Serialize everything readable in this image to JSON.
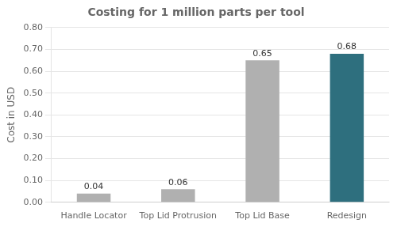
{
  "chart_data": {
    "type": "bar",
    "title": "Costing for 1 million parts per tool",
    "y_label": "Cost in USD",
    "categories": [
      "Handle Locator",
      "Top Lid Protrusion",
      "Top Lid Base",
      "Redesign"
    ],
    "values": [
      0.04,
      0.06,
      0.65,
      0.68
    ],
    "colors": [
      "#b0b0b0",
      "#b0b0b0",
      "#b0b0b0",
      "#2e6f7e"
    ],
    "ylim": [
      0.0,
      0.8
    ],
    "yticks": [
      {
        "value": 0.0,
        "label": "0.00"
      },
      {
        "value": 0.1,
        "label": "0.10"
      },
      {
        "value": 0.2,
        "label": "0.20"
      },
      {
        "value": 0.3,
        "label": "0.30"
      },
      {
        "value": 0.4,
        "label": "0.40"
      },
      {
        "value": 0.5,
        "label": "0.50"
      },
      {
        "value": 0.6,
        "label": "0.60"
      },
      {
        "value": 0.7,
        "label": "0.70"
      },
      {
        "value": 0.8,
        "label": "0.80"
      }
    ],
    "grid": true,
    "data_labels": true
  }
}
